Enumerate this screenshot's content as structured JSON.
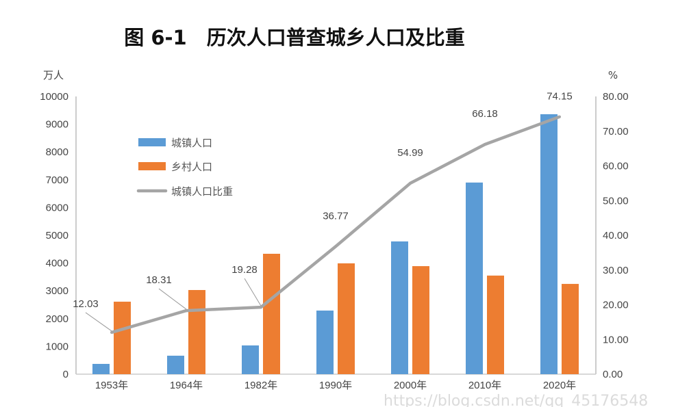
{
  "chart_data": {
    "type": "bar",
    "title": "图 6-1　历次人口普查城乡人口及比重",
    "ylabel_left": "万人",
    "ylabel_right": "%",
    "ylim_left": [
      0,
      10000
    ],
    "ylim_right": [
      0,
      80
    ],
    "yticks_left": [
      "0",
      "1000",
      "2000",
      "3000",
      "4000",
      "5000",
      "6000",
      "7000",
      "8000",
      "9000",
      "10000"
    ],
    "yticks_right": [
      "0.00",
      "10.00",
      "20.00",
      "30.00",
      "40.00",
      "50.00",
      "60.00",
      "70.00",
      "80.00"
    ],
    "categories": [
      "1953年",
      "1964年",
      "1982年",
      "1990年",
      "2000年",
      "2010年",
      "2020年"
    ],
    "series": [
      {
        "name": "城镇人口",
        "type": "bar",
        "axis": "left",
        "color": "#5B9BD5",
        "values": [
          370,
          665,
          1035,
          2290,
          4780,
          6900,
          9360
        ]
      },
      {
        "name": "乡村人口",
        "type": "bar",
        "axis": "left",
        "color": "#ED7D31",
        "values": [
          2610,
          3030,
          4335,
          3990,
          3890,
          3550,
          3250
        ]
      },
      {
        "name": "城镇人口比重",
        "type": "line",
        "axis": "right",
        "color": "#A5A5A5",
        "values": [
          12.03,
          18.31,
          19.28,
          36.77,
          54.99,
          66.18,
          74.15
        ],
        "labels": [
          "12.03",
          "18.31",
          "19.28",
          "36.77",
          "54.99",
          "66.18",
          "74.15"
        ]
      }
    ],
    "legend_placement": "top-left",
    "grid": false
  },
  "watermark": "https://blog.csdn.net/qq_45176548"
}
